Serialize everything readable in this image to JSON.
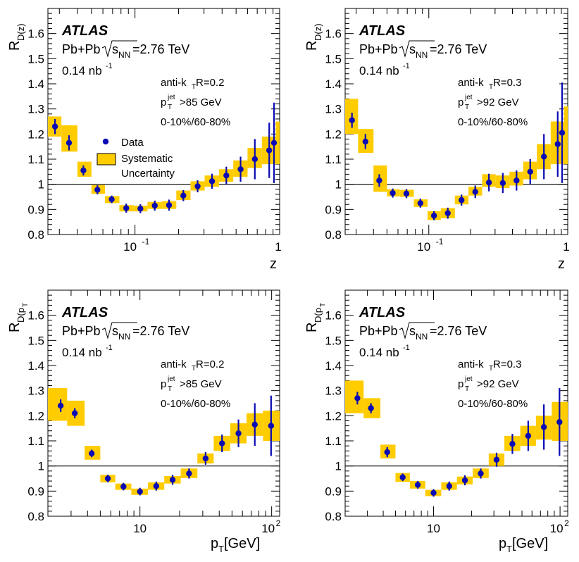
{
  "colors": {
    "marker": "#0a0ab4",
    "band": "#ffcc00",
    "band_edge": "#e6b800",
    "axis": "#000000"
  },
  "chart_data": [
    {
      "type": "scatter",
      "xscale": "log",
      "xlim": [
        0.025,
        1.0
      ],
      "ylim": [
        0.8,
        1.7
      ],
      "yticks": [
        "0.8",
        "0.9",
        "1",
        "1.1",
        "1.2",
        "1.3",
        "1.4",
        "1.5",
        "1.6"
      ],
      "xticks": [
        "10",
        "-1",
        "1"
      ],
      "xlabel": "z",
      "ylabel_main": "R",
      "ylabel_sub": "D(z)",
      "reference_line": 1.0,
      "atlas": "ATLAS",
      "system_label": "Pb+Pb",
      "sqrt_label": "s",
      "sqrt_sub": "NN",
      "energy_label": "=2.76 TeV",
      "lumi_label": "0.14 nb",
      "lumi_exp": "-1",
      "algo_label": "anti-k",
      "algo_sub": "T",
      "algo_r": " R=0.2",
      "ptcut_p": "p",
      "ptcut_sup": "jet",
      "ptcut_sub": "T",
      "ptcut_val": ">85 GeV",
      "centrality_label": "0-10%/60-80%",
      "legend": {
        "data": "Data",
        "sys1": "Systematic",
        "sys2": "Uncertainty"
      },
      "points": [
        {
          "x": 0.028,
          "y": 1.23,
          "err": 0.03,
          "lo": 0.025,
          "hi": 0.031,
          "s_lo": 1.19,
          "s_hi": 1.27
        },
        {
          "x": 0.035,
          "y": 1.165,
          "err": 0.03,
          "lo": 0.031,
          "hi": 0.04,
          "s_lo": 1.13,
          "s_hi": 1.235
        },
        {
          "x": 0.044,
          "y": 1.055,
          "err": 0.02,
          "lo": 0.04,
          "hi": 0.05,
          "s_lo": 1.03,
          "s_hi": 1.09
        },
        {
          "x": 0.055,
          "y": 0.978,
          "err": 0.018,
          "lo": 0.05,
          "hi": 0.062,
          "s_lo": 0.962,
          "s_hi": 0.997
        },
        {
          "x": 0.069,
          "y": 0.94,
          "err": 0.015,
          "lo": 0.062,
          "hi": 0.078,
          "s_lo": 0.925,
          "s_hi": 0.953
        },
        {
          "x": 0.087,
          "y": 0.905,
          "err": 0.018,
          "lo": 0.078,
          "hi": 0.098,
          "s_lo": 0.892,
          "s_hi": 0.917
        },
        {
          "x": 0.109,
          "y": 0.903,
          "err": 0.018,
          "lo": 0.098,
          "hi": 0.122,
          "s_lo": 0.892,
          "s_hi": 0.915
        },
        {
          "x": 0.137,
          "y": 0.915,
          "err": 0.02,
          "lo": 0.122,
          "hi": 0.154,
          "s_lo": 0.902,
          "s_hi": 0.93
        },
        {
          "x": 0.172,
          "y": 0.917,
          "err": 0.022,
          "lo": 0.154,
          "hi": 0.193,
          "s_lo": 0.902,
          "s_hi": 0.933
        },
        {
          "x": 0.216,
          "y": 0.955,
          "err": 0.022,
          "lo": 0.193,
          "hi": 0.242,
          "s_lo": 0.937,
          "s_hi": 0.975
        },
        {
          "x": 0.271,
          "y": 0.992,
          "err": 0.024,
          "lo": 0.242,
          "hi": 0.303,
          "s_lo": 0.975,
          "s_hi": 1.012
        },
        {
          "x": 0.341,
          "y": 1.012,
          "err": 0.03,
          "lo": 0.303,
          "hi": 0.381,
          "s_lo": 0.99,
          "s_hi": 1.035
        },
        {
          "x": 0.428,
          "y": 1.035,
          "err": 0.035,
          "lo": 0.381,
          "hi": 0.478,
          "s_lo": 1.01,
          "s_hi": 1.06
        },
        {
          "x": 0.537,
          "y": 1.06,
          "err": 0.05,
          "lo": 0.478,
          "hi": 0.6,
          "s_lo": 1.03,
          "s_hi": 1.095
        },
        {
          "x": 0.674,
          "y": 1.1,
          "err": 0.08,
          "lo": 0.6,
          "hi": 0.754,
          "s_lo": 1.065,
          "s_hi": 1.145
        },
        {
          "x": 0.847,
          "y": 1.135,
          "err": 0.11,
          "lo": 0.754,
          "hi": 0.94,
          "s_lo": 1.08,
          "s_hi": 1.19
        },
        {
          "x": 1.0,
          "y": 1.165,
          "err": 0.16,
          "lo": 0.94,
          "hi": 1.0,
          "s_lo": 1.08,
          "s_hi": 1.25
        }
      ]
    },
    {
      "type": "scatter",
      "xscale": "log",
      "xlim": [
        0.025,
        1.0
      ],
      "ylim": [
        0.8,
        1.7
      ],
      "yticks": [
        "0.8",
        "0.9",
        "1",
        "1.1",
        "1.2",
        "1.3",
        "1.4",
        "1.5",
        "1.6"
      ],
      "xticks": [
        "10",
        "-1",
        "1"
      ],
      "xlabel": "z",
      "ylabel_main": "R",
      "ylabel_sub": "D(z)",
      "reference_line": 1.0,
      "atlas": "ATLAS",
      "system_label": "Pb+Pb",
      "sqrt_label": "s",
      "sqrt_sub": "NN",
      "energy_label": "=2.76 TeV",
      "lumi_label": "0.14 nb",
      "lumi_exp": "-1",
      "algo_label": "anti-k",
      "algo_sub": "T",
      "algo_r": " R=0.3",
      "ptcut_p": "p",
      "ptcut_sup": "jet",
      "ptcut_sub": "T",
      "ptcut_val": ">92 GeV",
      "centrality_label": "0-10%/60-80%",
      "points": [
        {
          "x": 0.028,
          "y": 1.255,
          "err": 0.03,
          "lo": 0.025,
          "hi": 0.031,
          "s_lo": 1.2,
          "s_hi": 1.34
        },
        {
          "x": 0.035,
          "y": 1.17,
          "err": 0.03,
          "lo": 0.031,
          "hi": 0.04,
          "s_lo": 1.125,
          "s_hi": 1.22
        },
        {
          "x": 0.044,
          "y": 1.015,
          "err": 0.025,
          "lo": 0.04,
          "hi": 0.05,
          "s_lo": 0.97,
          "s_hi": 1.075
        },
        {
          "x": 0.055,
          "y": 0.965,
          "err": 0.018,
          "lo": 0.05,
          "hi": 0.062,
          "s_lo": 0.952,
          "s_hi": 0.98
        },
        {
          "x": 0.069,
          "y": 0.963,
          "err": 0.018,
          "lo": 0.062,
          "hi": 0.078,
          "s_lo": 0.95,
          "s_hi": 0.978
        },
        {
          "x": 0.087,
          "y": 0.925,
          "err": 0.018,
          "lo": 0.078,
          "hi": 0.098,
          "s_lo": 0.91,
          "s_hi": 0.94
        },
        {
          "x": 0.109,
          "y": 0.875,
          "err": 0.018,
          "lo": 0.098,
          "hi": 0.122,
          "s_lo": 0.858,
          "s_hi": 0.893
        },
        {
          "x": 0.137,
          "y": 0.885,
          "err": 0.022,
          "lo": 0.122,
          "hi": 0.154,
          "s_lo": 0.865,
          "s_hi": 0.905
        },
        {
          "x": 0.172,
          "y": 0.937,
          "err": 0.022,
          "lo": 0.154,
          "hi": 0.193,
          "s_lo": 0.92,
          "s_hi": 0.955
        },
        {
          "x": 0.216,
          "y": 0.97,
          "err": 0.025,
          "lo": 0.193,
          "hi": 0.242,
          "s_lo": 0.955,
          "s_hi": 0.99
        },
        {
          "x": 0.271,
          "y": 1.007,
          "err": 0.035,
          "lo": 0.242,
          "hi": 0.303,
          "s_lo": 0.99,
          "s_hi": 1.04
        },
        {
          "x": 0.341,
          "y": 1.005,
          "err": 0.04,
          "lo": 0.303,
          "hi": 0.381,
          "s_lo": 0.985,
          "s_hi": 1.035
        },
        {
          "x": 0.428,
          "y": 1.015,
          "err": 0.04,
          "lo": 0.381,
          "hi": 0.478,
          "s_lo": 0.995,
          "s_hi": 1.05
        },
        {
          "x": 0.537,
          "y": 1.05,
          "err": 0.05,
          "lo": 0.478,
          "hi": 0.6,
          "s_lo": 1.02,
          "s_hi": 1.09
        },
        {
          "x": 0.674,
          "y": 1.11,
          "err": 0.09,
          "lo": 0.6,
          "hi": 0.754,
          "s_lo": 1.06,
          "s_hi": 1.16
        },
        {
          "x": 0.847,
          "y": 1.16,
          "err": 0.13,
          "lo": 0.754,
          "hi": 0.94,
          "s_lo": 1.08,
          "s_hi": 1.25
        },
        {
          "x": 1.0,
          "y": 1.205,
          "err": 0.2,
          "lo": 0.94,
          "hi": 1.0,
          "s_lo": 1.08,
          "s_hi": 1.31
        }
      ]
    },
    {
      "type": "scatter",
      "xscale": "log",
      "xlim": [
        2.0,
        115.0
      ],
      "ylim": [
        0.8,
        1.7
      ],
      "yticks": [
        "0.8",
        "0.9",
        "1",
        "1.1",
        "1.2",
        "1.3",
        "1.4",
        "1.5",
        "1.6"
      ],
      "xticks": [
        "10",
        "2"
      ],
      "xlabel_p": "p",
      "xlabel_sub": "T",
      "xlabel_unit": " [GeV]",
      "ylabel_main": "R",
      "ylabel_sub": "D(p",
      "reference_line": 1.0,
      "atlas": "ATLAS",
      "system_label": "Pb+Pb",
      "sqrt_label": "s",
      "sqrt_sub": "NN",
      "energy_label": "=2.76 TeV",
      "lumi_label": "0.14 nb",
      "lumi_exp": "-1",
      "algo_label": "anti-k",
      "algo_sub": "T",
      "algo_r": " R=0.2",
      "ptcut_p": "p",
      "ptcut_sup": "jet",
      "ptcut_sub": "T",
      "ptcut_val": ">85 GeV",
      "centrality_label": "0-10%/60-80%",
      "points": [
        {
          "x": 2.5,
          "y": 1.24,
          "err": 0.025,
          "lo": 2.0,
          "hi": 2.8,
          "s_lo": 1.18,
          "s_hi": 1.31
        },
        {
          "x": 3.2,
          "y": 1.21,
          "err": 0.02,
          "lo": 2.8,
          "hi": 3.8,
          "s_lo": 1.16,
          "s_hi": 1.26
        },
        {
          "x": 4.3,
          "y": 1.05,
          "err": 0.015,
          "lo": 3.8,
          "hi": 5.0,
          "s_lo": 1.025,
          "s_hi": 1.08
        },
        {
          "x": 5.7,
          "y": 0.95,
          "err": 0.015,
          "lo": 5.0,
          "hi": 6.5,
          "s_lo": 0.935,
          "s_hi": 0.965
        },
        {
          "x": 7.5,
          "y": 0.918,
          "err": 0.015,
          "lo": 6.5,
          "hi": 8.6,
          "s_lo": 0.905,
          "s_hi": 0.93
        },
        {
          "x": 10.0,
          "y": 0.898,
          "err": 0.015,
          "lo": 8.6,
          "hi": 11.5,
          "s_lo": 0.885,
          "s_hi": 0.91
        },
        {
          "x": 13.3,
          "y": 0.92,
          "err": 0.018,
          "lo": 11.5,
          "hi": 15.3,
          "s_lo": 0.905,
          "s_hi": 0.935
        },
        {
          "x": 17.7,
          "y": 0.945,
          "err": 0.02,
          "lo": 15.3,
          "hi": 20.4,
          "s_lo": 0.93,
          "s_hi": 0.96
        },
        {
          "x": 23.6,
          "y": 0.97,
          "err": 0.02,
          "lo": 20.4,
          "hi": 27.3,
          "s_lo": 0.952,
          "s_hi": 0.99
        },
        {
          "x": 31.5,
          "y": 1.03,
          "err": 0.025,
          "lo": 27.3,
          "hi": 36.3,
          "s_lo": 1.01,
          "s_hi": 1.05
        },
        {
          "x": 42.0,
          "y": 1.09,
          "err": 0.035,
          "lo": 36.3,
          "hi": 48.5,
          "s_lo": 1.06,
          "s_hi": 1.12
        },
        {
          "x": 56.0,
          "y": 1.13,
          "err": 0.055,
          "lo": 48.5,
          "hi": 64.5,
          "s_lo": 1.09,
          "s_hi": 1.17
        },
        {
          "x": 74.5,
          "y": 1.165,
          "err": 0.085,
          "lo": 64.5,
          "hi": 86.0,
          "s_lo": 1.12,
          "s_hi": 1.21
        },
        {
          "x": 99.0,
          "y": 1.16,
          "err": 0.12,
          "lo": 86.0,
          "hi": 115.0,
          "s_lo": 1.1,
          "s_hi": 1.22
        }
      ]
    },
    {
      "type": "scatter",
      "xscale": "log",
      "xlim": [
        2.0,
        115.0
      ],
      "ylim": [
        0.8,
        1.7
      ],
      "yticks": [
        "0.8",
        "0.9",
        "1",
        "1.1",
        "1.2",
        "1.3",
        "1.4",
        "1.5",
        "1.6"
      ],
      "xticks": [
        "10",
        "2"
      ],
      "xlabel_p": "p",
      "xlabel_sub": "T",
      "xlabel_unit": " [GeV]",
      "ylabel_main": "R",
      "ylabel_sub": "D(p",
      "reference_line": 1.0,
      "atlas": "ATLAS",
      "system_label": "Pb+Pb",
      "sqrt_label": "s",
      "sqrt_sub": "NN",
      "energy_label": "=2.76 TeV",
      "lumi_label": "0.14 nb",
      "lumi_exp": "-1",
      "algo_label": "anti-k",
      "algo_sub": "T",
      "algo_r": " R=0.3",
      "ptcut_p": "p",
      "ptcut_sup": "jet",
      "ptcut_sub": "T",
      "ptcut_val": ">92 GeV",
      "centrality_label": "0-10%/60-80%",
      "points": [
        {
          "x": 2.5,
          "y": 1.27,
          "err": 0.025,
          "lo": 2.0,
          "hi": 2.8,
          "s_lo": 1.21,
          "s_hi": 1.34
        },
        {
          "x": 3.2,
          "y": 1.23,
          "err": 0.02,
          "lo": 2.8,
          "hi": 3.8,
          "s_lo": 1.19,
          "s_hi": 1.27
        },
        {
          "x": 4.3,
          "y": 1.055,
          "err": 0.02,
          "lo": 3.8,
          "hi": 5.0,
          "s_lo": 1.03,
          "s_hi": 1.085
        },
        {
          "x": 5.7,
          "y": 0.955,
          "err": 0.015,
          "lo": 5.0,
          "hi": 6.5,
          "s_lo": 0.937,
          "s_hi": 0.972
        },
        {
          "x": 7.5,
          "y": 0.925,
          "err": 0.015,
          "lo": 6.5,
          "hi": 8.6,
          "s_lo": 0.91,
          "s_hi": 0.94
        },
        {
          "x": 10.0,
          "y": 0.893,
          "err": 0.015,
          "lo": 8.6,
          "hi": 11.5,
          "s_lo": 0.88,
          "s_hi": 0.905
        },
        {
          "x": 13.3,
          "y": 0.92,
          "err": 0.018,
          "lo": 11.5,
          "hi": 15.3,
          "s_lo": 0.905,
          "s_hi": 0.935
        },
        {
          "x": 17.7,
          "y": 0.943,
          "err": 0.02,
          "lo": 15.3,
          "hi": 20.4,
          "s_lo": 0.927,
          "s_hi": 0.958
        },
        {
          "x": 23.6,
          "y": 0.97,
          "err": 0.02,
          "lo": 20.4,
          "hi": 27.3,
          "s_lo": 0.952,
          "s_hi": 0.99
        },
        {
          "x": 31.5,
          "y": 1.025,
          "err": 0.028,
          "lo": 27.3,
          "hi": 36.3,
          "s_lo": 1.0,
          "s_hi": 1.05
        },
        {
          "x": 42.0,
          "y": 1.088,
          "err": 0.04,
          "lo": 36.3,
          "hi": 48.5,
          "s_lo": 1.06,
          "s_hi": 1.12
        },
        {
          "x": 56.0,
          "y": 1.12,
          "err": 0.06,
          "lo": 48.5,
          "hi": 64.5,
          "s_lo": 1.08,
          "s_hi": 1.16
        },
        {
          "x": 74.5,
          "y": 1.155,
          "err": 0.09,
          "lo": 64.5,
          "hi": 86.0,
          "s_lo": 1.105,
          "s_hi": 1.2
        },
        {
          "x": 99.0,
          "y": 1.175,
          "err": 0.135,
          "lo": 86.0,
          "hi": 115.0,
          "s_lo": 1.1,
          "s_hi": 1.255
        }
      ]
    }
  ]
}
